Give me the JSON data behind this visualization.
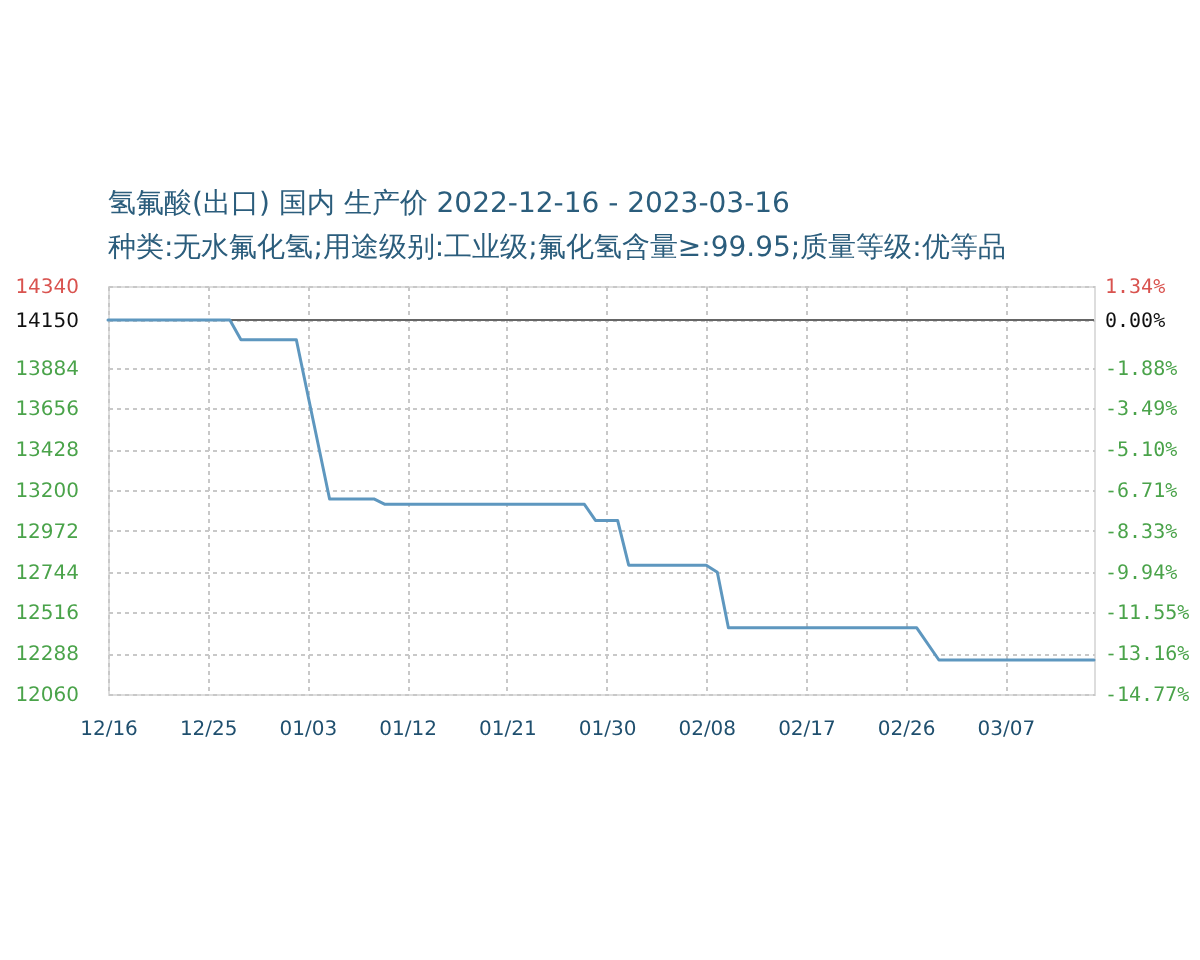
{
  "chart_data": {
    "type": "line",
    "title": "氢氟酸(出口) 国内 生产价 2022-12-16 - 2023-03-16",
    "subtitle": "种类:无水氟化氢;用途级别:工业级;氟化氢含量≥:99.95;质量等级:优等品",
    "x": [
      "2022-12-16",
      "2022-12-27",
      "2022-12-28",
      "2023-01-02",
      "2023-01-05",
      "2023-01-09",
      "2023-01-10",
      "2023-01-28",
      "2023-01-29",
      "2023-01-31",
      "2023-02-01",
      "2023-02-08",
      "2023-02-09",
      "2023-02-10",
      "2023-02-27",
      "2023-03-01",
      "2023-03-15"
    ],
    "series": [
      {
        "color": "#5e97bf",
        "values": [
          14150,
          14150,
          14040,
          14040,
          13150,
          13150,
          13120,
          13120,
          13030,
          13030,
          12780,
          12780,
          12740,
          12430,
          12430,
          12250,
          12250
        ]
      }
    ],
    "xlim": [
      "2022-12-16",
      "2023-03-15"
    ],
    "xticks": [
      {
        "value": "2022-12-16",
        "label": "12/16"
      },
      {
        "value": "2022-12-25",
        "label": "12/25"
      },
      {
        "value": "2023-01-03",
        "label": "01/03"
      },
      {
        "value": "2023-01-12",
        "label": "01/12"
      },
      {
        "value": "2023-01-21",
        "label": "01/21"
      },
      {
        "value": "2023-01-30",
        "label": "01/30"
      },
      {
        "value": "2023-02-08",
        "label": "02/08"
      },
      {
        "value": "2023-02-17",
        "label": "02/17"
      },
      {
        "value": "2023-02-26",
        "label": "02/26"
      },
      {
        "value": "2023-03-07",
        "label": "03/07"
      }
    ],
    "ylim": [
      12060,
      14340
    ],
    "yticks": [
      12060,
      12288,
      12516,
      12744,
      12972,
      13200,
      13428,
      13656,
      13884,
      14150,
      14340
    ],
    "y2lim": [
      -14.77,
      1.34
    ],
    "y2ticks": [
      {
        "value": -14.77,
        "label": "-14.77%"
      },
      {
        "value": -13.16,
        "label": "-13.16%"
      },
      {
        "value": -11.55,
        "label": "-11.55%"
      },
      {
        "value": -9.94,
        "label": "-9.94%"
      },
      {
        "value": -8.33,
        "label": "-8.33%"
      },
      {
        "value": -6.71,
        "label": "-6.71%"
      },
      {
        "value": -5.1,
        "label": "-5.10%"
      },
      {
        "value": -3.49,
        "label": "-3.49%"
      },
      {
        "value": -1.88,
        "label": "-1.88%"
      },
      {
        "value": 0,
        "label": "0.00%"
      },
      {
        "value": 1.34,
        "label": "1.34%"
      }
    ],
    "ref_lines": [
      {
        "axis": "y2",
        "value": 0,
        "color": "#666666"
      }
    ],
    "grid": true
  }
}
